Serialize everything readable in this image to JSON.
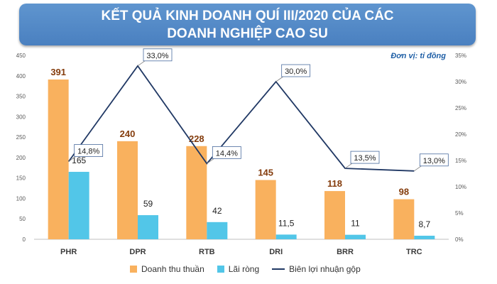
{
  "header": {
    "title": "KẾT QUẢ KINH DOANH QUÍ III/2020 CỦA CÁC DOANH NGHIỆP CAO SU"
  },
  "unit_label": "Đơn vị: tỉ đồng",
  "colors": {
    "revenue": "#f9b15e",
    "profit": "#52c6e8",
    "margin": "#203864",
    "banner": "#5a8fcf"
  },
  "chart_data": {
    "type": "bar",
    "categories": [
      "PHR",
      "DPR",
      "RTB",
      "DRI",
      "BRR",
      "TRC"
    ],
    "series": [
      {
        "name": "Doanh thu thuần",
        "type": "bar",
        "axis": "left",
        "values": [
          391,
          240,
          228,
          145,
          118,
          98
        ],
        "labels": [
          "391",
          "240",
          "228",
          "145",
          "118",
          "98"
        ]
      },
      {
        "name": "Lãi ròng",
        "type": "bar",
        "axis": "left",
        "values": [
          165,
          59,
          42,
          11.5,
          11,
          8.7
        ],
        "labels": [
          "165",
          "59",
          "42",
          "11,5",
          "11",
          "8,7"
        ]
      },
      {
        "name": "Biên lợi nhuận gộp",
        "type": "line",
        "axis": "right",
        "values": [
          14.8,
          33.0,
          14.4,
          30.0,
          13.5,
          13.0
        ],
        "labels": [
          "14,8%",
          "33,0%",
          "14,4%",
          "30,0%",
          "13,5%",
          "13,0%"
        ]
      }
    ],
    "y_left": {
      "min": 0,
      "max": 450,
      "ticks": [
        "0",
        "50",
        "100",
        "150",
        "200",
        "250",
        "300",
        "350",
        "400",
        "450"
      ]
    },
    "y_right": {
      "min": 0,
      "max": 35,
      "ticks": [
        "0%",
        "5%",
        "10%",
        "15%",
        "20%",
        "25%",
        "30%",
        "35%"
      ]
    },
    "grid": false,
    "legend_position": "bottom"
  }
}
